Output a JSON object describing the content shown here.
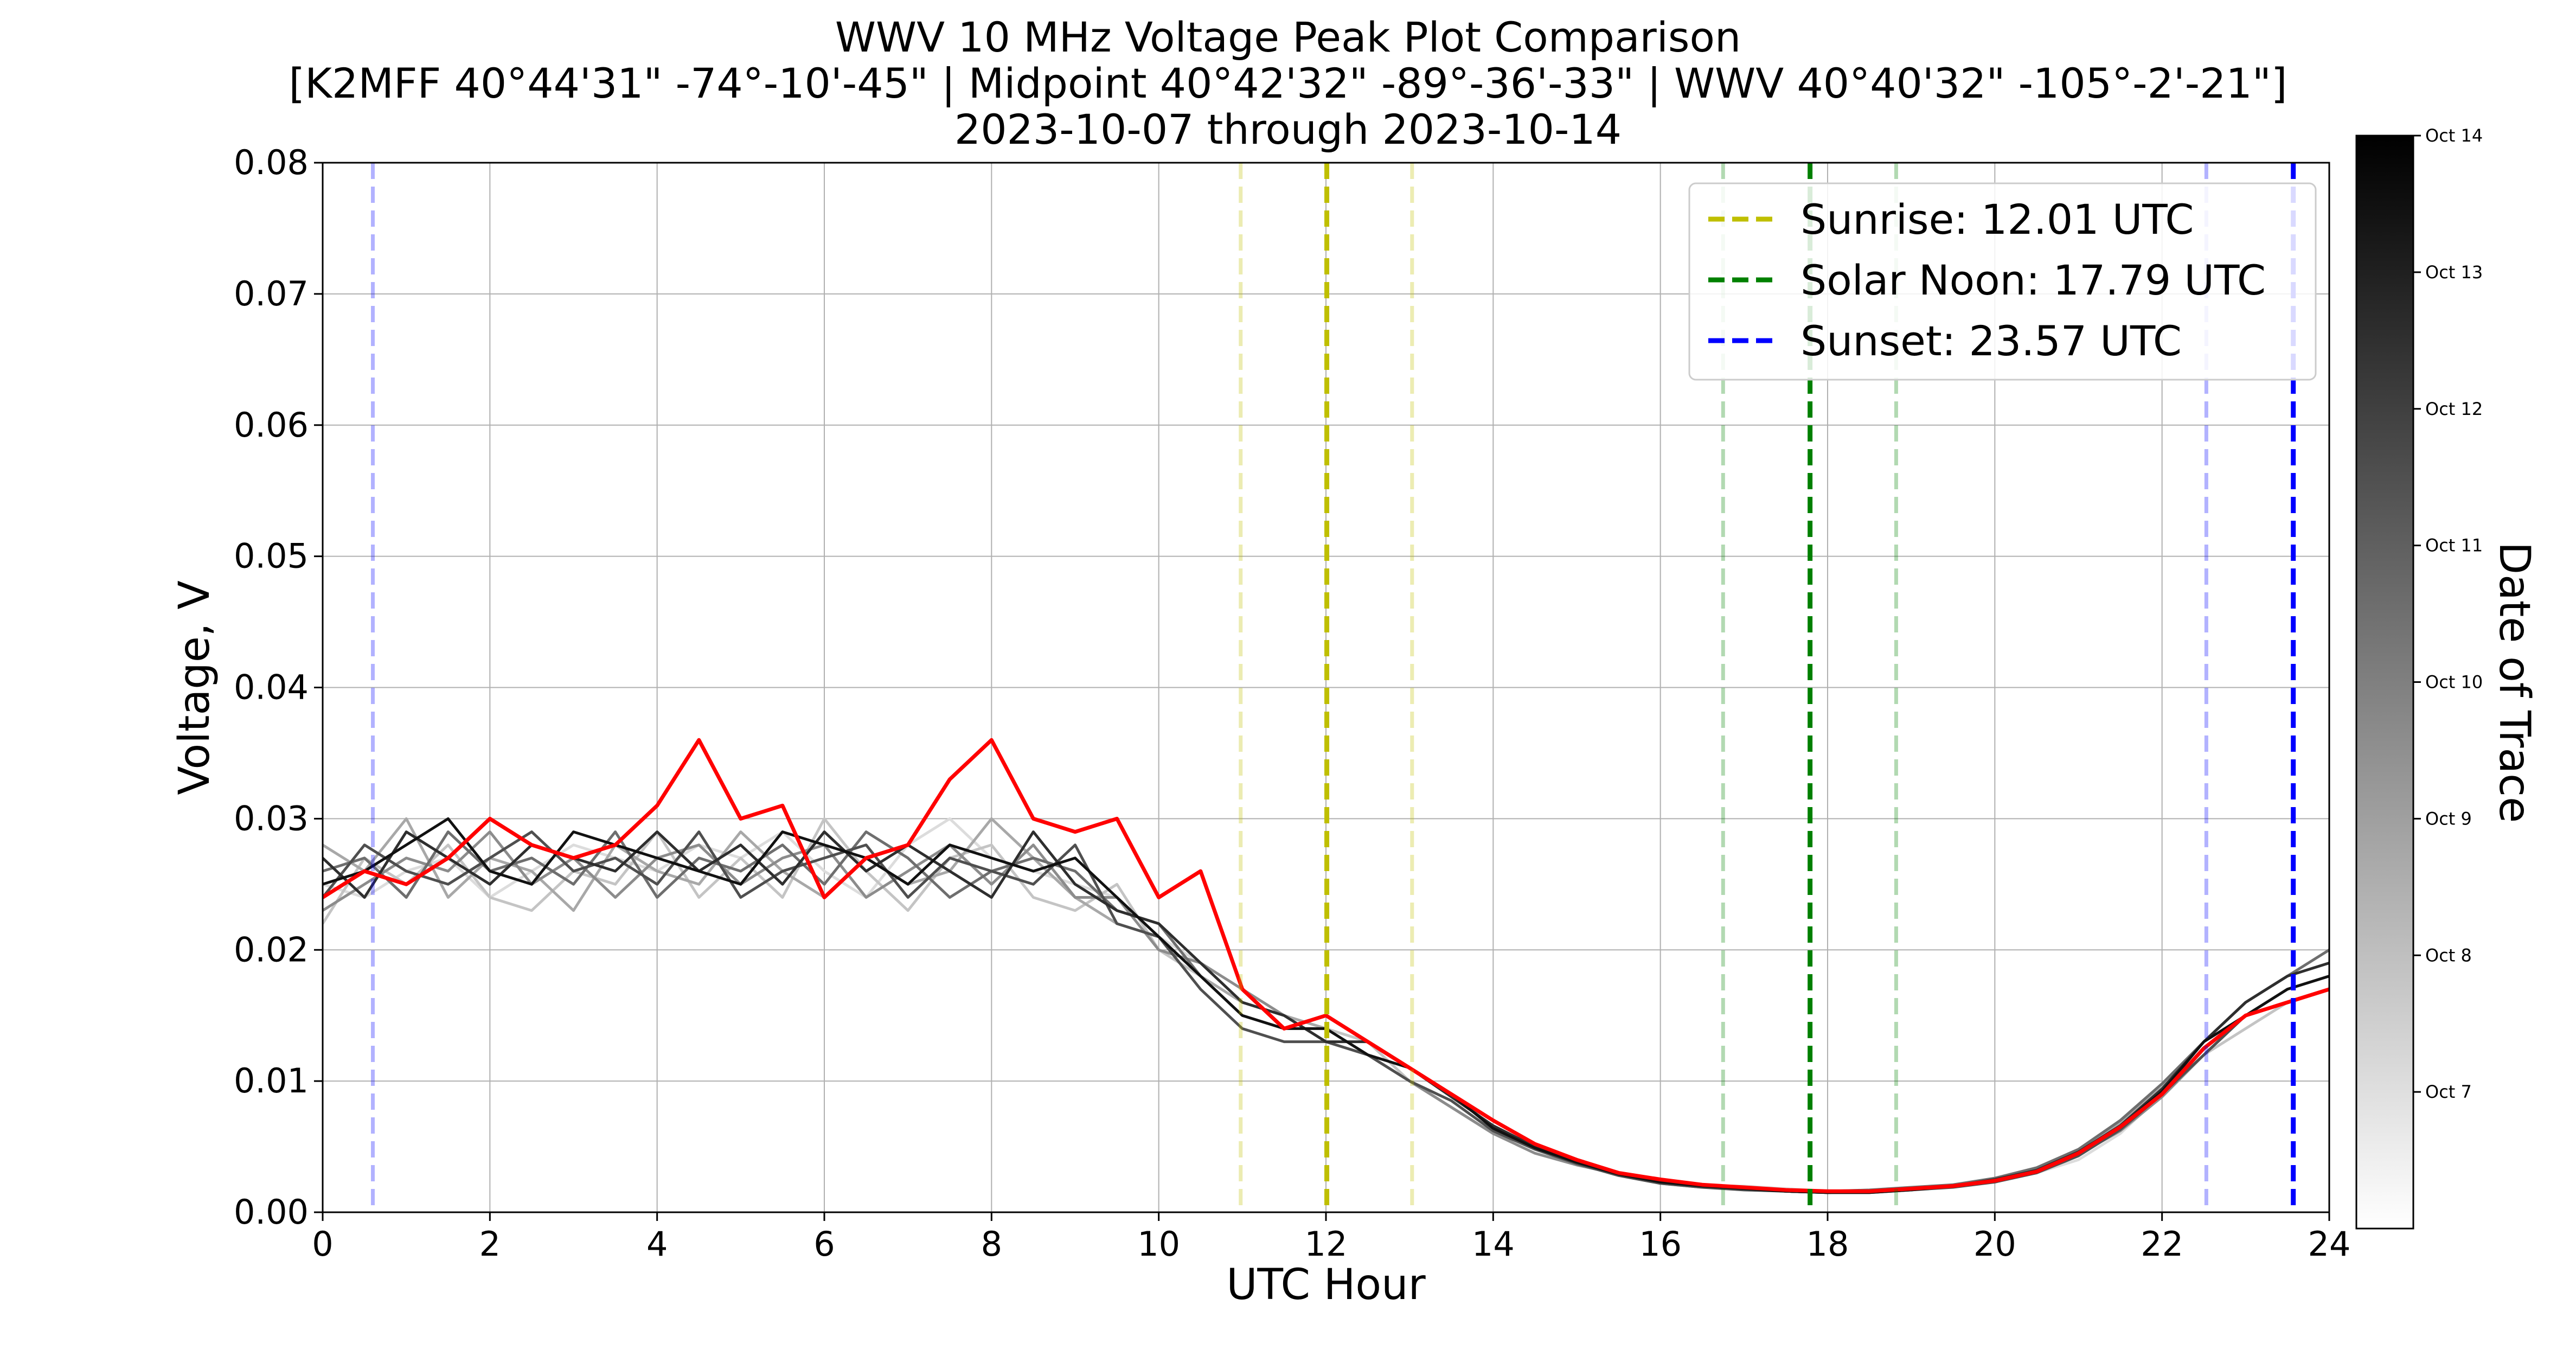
{
  "chart_data": {
    "type": "line",
    "title": "WWV 10 MHz Voltage Peak Plot Comparison",
    "subtitle": "[K2MFF  40°44'31\"  -74°-10'-45\" | Midpoint  40°42'32\"  -89°-36'-33\" | WWV  40°40'32\"  -105°-2'-21\"]",
    "date_range": "2023-10-07 through 2023-10-14",
    "xlabel": "UTC Hour",
    "ylabel": "Voltage, V",
    "xlim": [
      0,
      24
    ],
    "ylim": [
      0,
      0.08
    ],
    "x_ticks": [
      0,
      2,
      4,
      6,
      8,
      10,
      12,
      14,
      16,
      18,
      20,
      22,
      24
    ],
    "x_tick_labels": [
      "0",
      "2",
      "4",
      "6",
      "8",
      "10",
      "12",
      "14",
      "16",
      "18",
      "20",
      "22",
      "24"
    ],
    "y_ticks": [
      0,
      0.01,
      0.02,
      0.03,
      0.04,
      0.05,
      0.06,
      0.07,
      0.08
    ],
    "y_tick_labels": [
      "0.00",
      "0.01",
      "0.02",
      "0.03",
      "0.04",
      "0.05",
      "0.06",
      "0.07",
      "0.08"
    ],
    "grid": true,
    "legend_position": "top-right",
    "legend": [
      {
        "label": "Sunrise: 12.01 UTC",
        "color": "#bfbf00"
      },
      {
        "label": "Solar Noon: 17.79 UTC",
        "color": "#008000"
      },
      {
        "label": "Sunset: 23.57 UTC",
        "color": "#0000ff"
      }
    ],
    "reference_lines": [
      {
        "kind": "sunrise",
        "x": 12.01,
        "color": "#bfbf00",
        "emphasis": "main"
      },
      {
        "kind": "sunrise",
        "x": 10.98,
        "color": "#bfbf00",
        "emphasis": "faint"
      },
      {
        "kind": "sunrise",
        "x": 13.03,
        "color": "#bfbf00",
        "emphasis": "faint"
      },
      {
        "kind": "solar_noon",
        "x": 17.79,
        "color": "#008000",
        "emphasis": "main"
      },
      {
        "kind": "solar_noon",
        "x": 16.75,
        "color": "#008000",
        "emphasis": "faint"
      },
      {
        "kind": "solar_noon",
        "x": 18.82,
        "color": "#008000",
        "emphasis": "faint"
      },
      {
        "kind": "sunset",
        "x": 23.57,
        "color": "#0000ff",
        "emphasis": "main"
      },
      {
        "kind": "sunset",
        "x": 22.53,
        "color": "#0000ff",
        "emphasis": "faint"
      },
      {
        "kind": "sunset",
        "x": 0.6,
        "color": "#0000ff",
        "emphasis": "faint"
      }
    ],
    "x": [
      0,
      0.5,
      1,
      1.5,
      2,
      2.5,
      3,
      3.5,
      4,
      4.5,
      5,
      5.5,
      6,
      6.5,
      7,
      7.5,
      8,
      8.5,
      9,
      9.5,
      10,
      10.5,
      11,
      11.5,
      12,
      12.5,
      13,
      13.5,
      14,
      14.5,
      15,
      15.5,
      16,
      16.5,
      17,
      17.5,
      18,
      18.5,
      19,
      19.5,
      20,
      20.5,
      21,
      21.5,
      22,
      22.5,
      23,
      23.5,
      24
    ],
    "series": [
      {
        "date": "2023-10-07",
        "color": "#dcdcdc",
        "values": [
          0.025,
          0.024,
          0.026,
          0.027,
          0.024,
          0.026,
          0.028,
          0.027,
          0.026,
          0.028,
          0.027,
          0.029,
          0.026,
          0.024,
          0.028,
          0.03,
          0.027,
          0.026,
          0.025,
          0.024,
          0.021,
          0.019,
          0.016,
          0.015,
          0.014,
          0.012,
          0.01,
          0.008,
          0.006,
          0.005,
          0.004,
          0.003,
          0.0025,
          0.002,
          0.002,
          0.0018,
          0.0016,
          0.0017,
          0.0019,
          0.002,
          0.0023,
          0.003,
          0.004,
          0.006,
          0.009,
          0.012,
          0.015,
          0.017,
          0.018
        ]
      },
      {
        "date": "2023-10-08",
        "color": "#c4c4c4",
        "values": [
          0.022,
          0.027,
          0.025,
          0.028,
          0.024,
          0.023,
          0.026,
          0.025,
          0.029,
          0.024,
          0.027,
          0.024,
          0.03,
          0.026,
          0.023,
          0.027,
          0.028,
          0.024,
          0.023,
          0.025,
          0.02,
          0.018,
          0.015,
          0.014,
          0.014,
          0.013,
          0.01,
          0.008,
          0.006,
          0.005,
          0.004,
          0.003,
          0.0024,
          0.002,
          0.0019,
          0.0017,
          0.0016,
          0.0016,
          0.0018,
          0.002,
          0.0024,
          0.0032,
          0.0045,
          0.0065,
          0.009,
          0.012,
          0.014,
          0.016,
          0.017
        ]
      },
      {
        "date": "2023-10-09",
        "color": "#a8a8a8",
        "values": [
          0.028,
          0.026,
          0.03,
          0.024,
          0.027,
          0.026,
          0.023,
          0.028,
          0.026,
          0.025,
          0.029,
          0.026,
          0.024,
          0.027,
          0.025,
          0.026,
          0.03,
          0.027,
          0.024,
          0.022,
          0.021,
          0.018,
          0.016,
          0.015,
          0.014,
          0.012,
          0.01,
          0.008,
          0.006,
          0.005,
          0.0038,
          0.003,
          0.0023,
          0.002,
          0.0018,
          0.0016,
          0.0015,
          0.0016,
          0.0018,
          0.0021,
          0.0025,
          0.0033,
          0.0047,
          0.0068,
          0.0095,
          0.013,
          0.016,
          0.018,
          0.019
        ]
      },
      {
        "date": "2023-10-10",
        "color": "#8c8c8c",
        "values": [
          0.023,
          0.025,
          0.027,
          0.026,
          0.029,
          0.025,
          0.027,
          0.024,
          0.027,
          0.028,
          0.025,
          0.027,
          0.028,
          0.024,
          0.026,
          0.028,
          0.025,
          0.028,
          0.024,
          0.024,
          0.02,
          0.019,
          0.017,
          0.015,
          0.013,
          0.012,
          0.01,
          0.008,
          0.006,
          0.0045,
          0.0036,
          0.0029,
          0.0022,
          0.0019,
          0.0018,
          0.0016,
          0.0015,
          0.0016,
          0.0017,
          0.002,
          0.0024,
          0.003,
          0.0044,
          0.0062,
          0.0088,
          0.012,
          0.015,
          0.017,
          0.018
        ]
      },
      {
        "date": "2023-10-11",
        "color": "#6e6e6e",
        "values": [
          0.026,
          0.027,
          0.024,
          0.029,
          0.026,
          0.027,
          0.025,
          0.029,
          0.024,
          0.027,
          0.026,
          0.028,
          0.025,
          0.029,
          0.027,
          0.024,
          0.026,
          0.027,
          0.026,
          0.023,
          0.022,
          0.018,
          0.015,
          0.014,
          0.015,
          0.013,
          0.011,
          0.009,
          0.0065,
          0.005,
          0.0039,
          0.003,
          0.0024,
          0.0021,
          0.0019,
          0.0017,
          0.0016,
          0.0017,
          0.0019,
          0.0021,
          0.0026,
          0.0034,
          0.0048,
          0.007,
          0.0098,
          0.013,
          0.016,
          0.018,
          0.02
        ]
      },
      {
        "date": "2023-10-12",
        "color": "#4f4f4f",
        "values": [
          0.024,
          0.028,
          0.026,
          0.025,
          0.027,
          0.029,
          0.026,
          0.027,
          0.025,
          0.029,
          0.024,
          0.026,
          0.027,
          0.028,
          0.024,
          0.027,
          0.026,
          0.025,
          0.028,
          0.022,
          0.021,
          0.017,
          0.014,
          0.013,
          0.013,
          0.012,
          0.01,
          0.0085,
          0.0062,
          0.0048,
          0.0037,
          0.0028,
          0.0022,
          0.0019,
          0.0017,
          0.0016,
          0.0015,
          0.0015,
          0.0017,
          0.0019,
          0.0023,
          0.003,
          0.0043,
          0.0063,
          0.009,
          0.012,
          0.015,
          0.017,
          0.018
        ]
      },
      {
        "date": "2023-10-13",
        "color": "#2e2e2e",
        "values": [
          0.027,
          0.024,
          0.029,
          0.027,
          0.025,
          0.028,
          0.027,
          0.026,
          0.029,
          0.026,
          0.028,
          0.025,
          0.029,
          0.026,
          0.028,
          0.026,
          0.024,
          0.029,
          0.025,
          0.023,
          0.022,
          0.019,
          0.016,
          0.015,
          0.013,
          0.013,
          0.011,
          0.0088,
          0.0066,
          0.005,
          0.004,
          0.003,
          0.0024,
          0.002,
          0.0018,
          0.0016,
          0.0015,
          0.0016,
          0.0018,
          0.002,
          0.0025,
          0.0032,
          0.0046,
          0.0066,
          0.0094,
          0.013,
          0.016,
          0.018,
          0.019
        ]
      },
      {
        "date": "2023-10-14",
        "color": "#111111",
        "values": [
          0.025,
          0.026,
          0.028,
          0.03,
          0.026,
          0.025,
          0.029,
          0.028,
          0.027,
          0.026,
          0.025,
          0.029,
          0.028,
          0.027,
          0.025,
          0.028,
          0.027,
          0.026,
          0.027,
          0.024,
          0.021,
          0.018,
          0.015,
          0.014,
          0.014,
          0.012,
          0.011,
          0.009,
          0.0064,
          0.0049,
          0.0038,
          0.0029,
          0.0023,
          0.002,
          0.0018,
          0.0016,
          0.0015,
          0.0015,
          0.0017,
          0.002,
          0.0024,
          0.0031,
          0.0045,
          0.0065,
          0.0092,
          0.013,
          0.015,
          0.017,
          0.018
        ]
      },
      {
        "date": "2023-10-14 (highlighted)",
        "color": "#ff0000",
        "values": [
          0.024,
          0.026,
          0.025,
          0.027,
          0.03,
          0.028,
          0.027,
          0.028,
          0.031,
          0.036,
          0.03,
          0.031,
          0.024,
          0.027,
          0.028,
          0.033,
          0.036,
          0.03,
          0.029,
          0.03,
          0.024,
          0.026,
          0.017,
          0.014,
          0.015,
          0.013,
          0.011,
          0.009,
          0.007,
          0.0052,
          0.004,
          0.003,
          0.0025,
          0.0021,
          0.0019,
          0.0017,
          0.0016,
          0.0016,
          0.0018,
          0.002,
          0.0024,
          0.0031,
          0.0045,
          0.0065,
          0.009,
          0.0125,
          0.015,
          0.016,
          0.017
        ]
      }
    ],
    "colorbar": {
      "label": "Date of Trace",
      "colors": [
        "#ffffff",
        "#000000"
      ],
      "tick_labels": [
        "Oct 7",
        "Oct 8",
        "Oct 9",
        "Oct 10",
        "Oct 11",
        "Oct 12",
        "Oct 13",
        "Oct 14"
      ]
    }
  }
}
